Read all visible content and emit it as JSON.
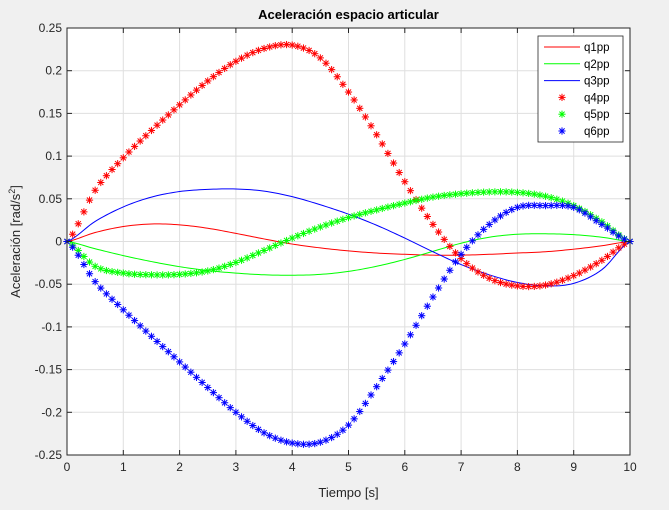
{
  "chart_data": {
    "type": "line",
    "title": "Aceleración espacio articular",
    "xlabel": "Tiempo [s]",
    "ylabel_main": "Aceleración [rad/s",
    "ylabel_sup": "2",
    "ylabel_close": "]",
    "xlim": [
      0,
      10
    ],
    "ylim": [
      -0.25,
      0.25
    ],
    "xticks": [
      0,
      1,
      2,
      3,
      4,
      5,
      6,
      7,
      8,
      9,
      10
    ],
    "xtick_labels": [
      "0",
      "1",
      "2",
      "3",
      "4",
      "5",
      "6",
      "7",
      "8",
      "9",
      "10"
    ],
    "yticks": [
      -0.25,
      -0.2,
      -0.15,
      -0.1,
      -0.05,
      0,
      0.05,
      0.1,
      0.15,
      0.2,
      0.25
    ],
    "ytick_labels": [
      "-0.25",
      "-0.2",
      "-0.15",
      "-0.1",
      "-0.05",
      "0",
      "0.05",
      "0.1",
      "0.15",
      "0.2",
      "0.25"
    ],
    "grid": true,
    "legend_position": "top-right",
    "background": "#f0f0f0",
    "plot_background": "#ffffff",
    "x": [
      0,
      0.5,
      1,
      1.5,
      2,
      2.5,
      3,
      3.5,
      4,
      4.5,
      5,
      5.5,
      6,
      6.5,
      7,
      7.5,
      8,
      8.5,
      9,
      9.5,
      10
    ],
    "series": [
      {
        "name": "q1pp",
        "style": "line",
        "color": "#ff0000",
        "values": [
          0,
          0.0105,
          0.0175,
          0.0205,
          0.0195,
          0.0155,
          0.0095,
          0.003,
          -0.003,
          -0.0075,
          -0.011,
          -0.0135,
          -0.015,
          -0.016,
          -0.016,
          -0.015,
          -0.0135,
          -0.012,
          -0.009,
          -0.005,
          0
        ]
      },
      {
        "name": "q2pp",
        "style": "line",
        "color": "#00ff00",
        "values": [
          0,
          -0.0085,
          -0.0165,
          -0.0235,
          -0.0295,
          -0.034,
          -0.037,
          -0.039,
          -0.0395,
          -0.0385,
          -0.035,
          -0.029,
          -0.021,
          -0.0115,
          -0.002,
          0.005,
          0.0085,
          0.009,
          0.008,
          0.005,
          0
        ]
      },
      {
        "name": "q3pp",
        "style": "line",
        "color": "#0000ff",
        "values": [
          0,
          0.0235,
          0.0405,
          0.052,
          0.0585,
          0.061,
          0.0615,
          0.059,
          0.0525,
          0.043,
          0.032,
          0.019,
          0.004,
          -0.012,
          -0.027,
          -0.039,
          -0.048,
          -0.052,
          -0.049,
          -0.033,
          0
        ]
      },
      {
        "name": "q4pp",
        "style": "marker",
        "color": "#ff0000",
        "values": [
          0,
          0.06,
          0.098,
          0.13,
          0.16,
          0.188,
          0.211,
          0.226,
          0.23,
          0.215,
          0.175,
          0.125,
          0.07,
          0.02,
          -0.02,
          -0.043,
          -0.052,
          -0.051,
          -0.04,
          -0.022,
          0
        ]
      },
      {
        "name": "q5pp",
        "style": "marker",
        "color": "#00ff00",
        "values": [
          0,
          -0.029,
          -0.037,
          -0.039,
          -0.0385,
          -0.0345,
          -0.0245,
          -0.0105,
          0.004,
          0.017,
          0.028,
          0.037,
          0.045,
          0.052,
          0.056,
          0.058,
          0.0575,
          0.053,
          0.042,
          0.023,
          0
        ]
      },
      {
        "name": "q6pp",
        "style": "marker",
        "color": "#0000ff",
        "values": [
          0,
          -0.047,
          -0.08,
          -0.111,
          -0.141,
          -0.171,
          -0.2,
          -0.224,
          -0.236,
          -0.235,
          -0.215,
          -0.17,
          -0.12,
          -0.065,
          -0.015,
          0.02,
          0.04,
          0.042,
          0.04,
          0.02,
          0
        ]
      }
    ]
  }
}
